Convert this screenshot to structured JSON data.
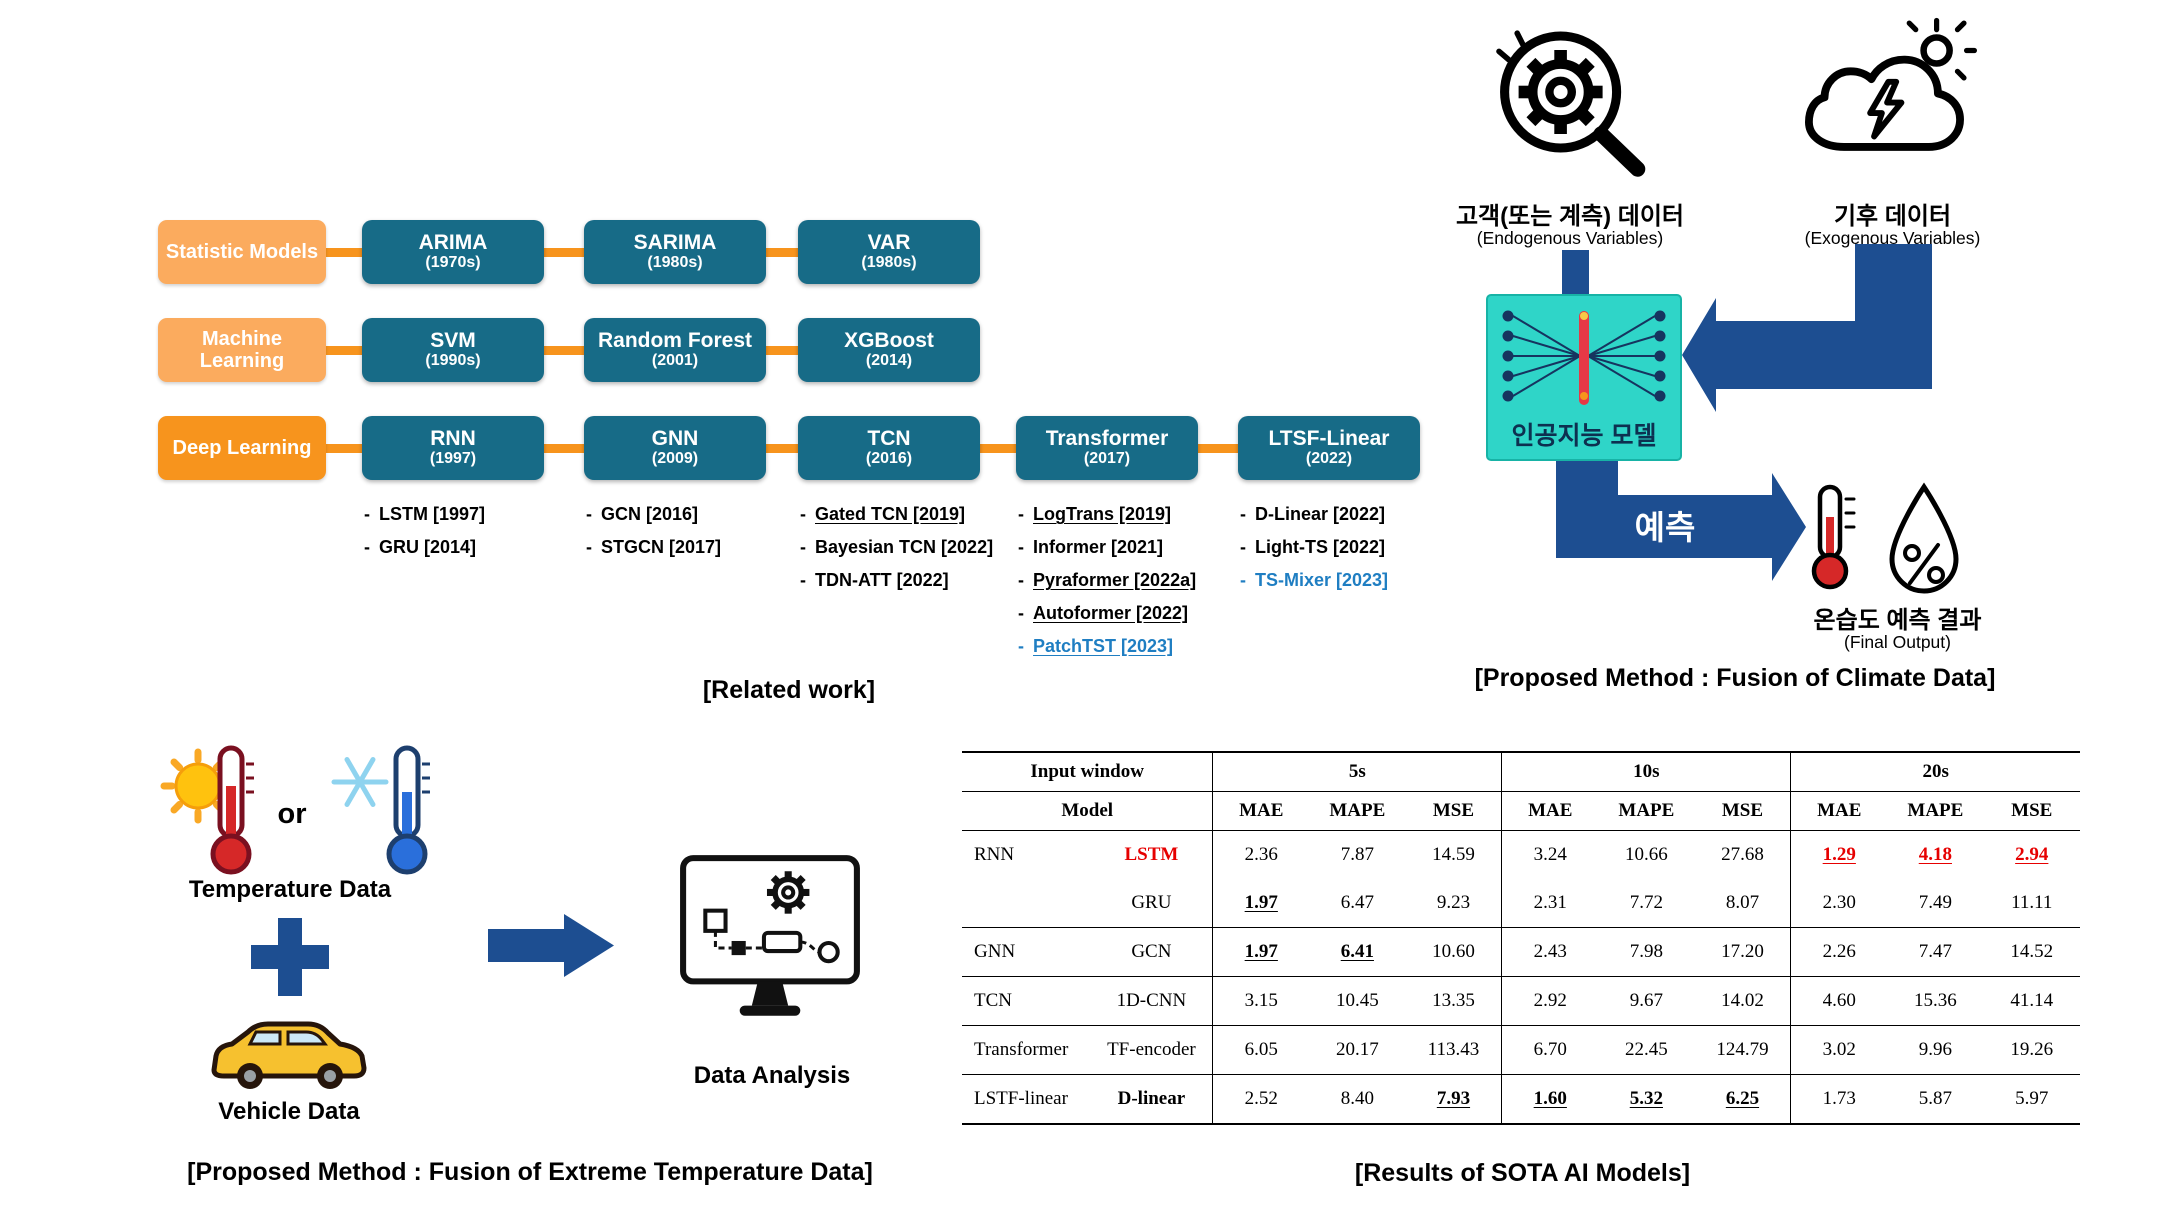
{
  "colors": {
    "navy": "#1d4e91",
    "orange": "#f7941d",
    "orange_light": "#fbab5e",
    "box_teal": "#176b87",
    "cyan": "#2fd5c8",
    "red": "#e60000",
    "link_blue": "#1f7ec2"
  },
  "related_work": {
    "caption": "[Related work]",
    "rows": [
      {
        "label": "Statistic Models",
        "boxes": [
          {
            "name": "ARIMA",
            "year": "(1970s)"
          },
          {
            "name": "SARIMA",
            "year": "(1980s)"
          },
          {
            "name": "VAR",
            "year": "(1980s)"
          }
        ]
      },
      {
        "label": "Machine Learning",
        "boxes": [
          {
            "name": "SVM",
            "year": "(1990s)"
          },
          {
            "name": "Random Forest",
            "year": "(2001)"
          },
          {
            "name": "XGBoost",
            "year": "(2014)"
          }
        ]
      },
      {
        "label": "Deep Learning",
        "boxes": [
          {
            "name": "RNN",
            "year": "(1997)"
          },
          {
            "name": "GNN",
            "year": "(2009)"
          },
          {
            "name": "TCN",
            "year": "(2016)"
          },
          {
            "name": "Transformer",
            "year": "(2017)"
          },
          {
            "name": "LTSF-Linear",
            "year": "(2022)"
          }
        ]
      }
    ],
    "sublists": [
      {
        "items": [
          {
            "text": "LSTM [1997]"
          },
          {
            "text": "GRU [2014]"
          }
        ]
      },
      {
        "items": [
          {
            "text": "GCN [2016]"
          },
          {
            "text": "STGCN [2017]"
          }
        ]
      },
      {
        "items": [
          {
            "text": "Gated TCN [2019]",
            "underline": true
          },
          {
            "text": "Bayesian TCN [2022]"
          },
          {
            "text": "TDN-ATT [2022]"
          }
        ]
      },
      {
        "items": [
          {
            "text": "LogTrans [2019]",
            "underline": true
          },
          {
            "text": "Informer [2021]"
          },
          {
            "text": "Pyraformer [2022a]",
            "underline": true
          },
          {
            "text": "Autoformer [2022]",
            "underline": true
          },
          {
            "text": "PatchTST [2023]",
            "underline": true,
            "blue": true
          }
        ]
      },
      {
        "items": [
          {
            "text": "D-Linear [2022]"
          },
          {
            "text": "Light-TS [2022]"
          },
          {
            "text": "TS-Mixer [2023]",
            "blue": true
          }
        ]
      }
    ]
  },
  "climate": {
    "caption": "[Proposed Method : Fusion of Climate Data]",
    "endogenous_title": "고객(또는 계측) 데이터",
    "endogenous_subtitle": "(Endogenous Variables)",
    "exogenous_title": "기후 데이터",
    "exogenous_subtitle": "(Exogenous Variables)",
    "model_label": "인공지능 모델",
    "predict_label": "예측",
    "output_title": "온습도 예측 결과",
    "output_subtitle": "(Final Output)"
  },
  "temperature": {
    "caption": "[Proposed Method : Fusion of Extreme Temperature Data]",
    "or_label": "or",
    "temperature_label": "Temperature Data",
    "vehicle_label": "Vehicle Data",
    "analysis_label": "Data Analysis"
  },
  "results": {
    "caption": "[Results of SOTA AI Models]",
    "header": {
      "input_window": "Input window",
      "model": "Model",
      "windows": [
        "5s",
        "10s",
        "20s"
      ],
      "metrics": [
        "MAE",
        "MAPE",
        "MSE"
      ]
    },
    "rows": [
      {
        "group": "RNN",
        "model": "LSTM",
        "model_style": "red",
        "values": [
          "2.36",
          "7.87",
          "14.59",
          "3.24",
          "10.66",
          "27.68",
          "1.29",
          "4.18",
          "2.94"
        ],
        "styles": [
          "",
          "",
          "",
          "",
          "",
          "",
          "red-ul",
          "red-ul",
          "red-ul"
        ]
      },
      {
        "group": "",
        "model": "GRU",
        "separator": true,
        "values": [
          "1.97",
          "6.47",
          "9.23",
          "2.31",
          "7.72",
          "8.07",
          "2.30",
          "7.49",
          "11.11"
        ],
        "styles": [
          "ul",
          "",
          "",
          "",
          "",
          "",
          "",
          "",
          ""
        ]
      },
      {
        "group": "GNN",
        "model": "GCN",
        "separator": true,
        "values": [
          "1.97",
          "6.41",
          "10.60",
          "2.43",
          "7.98",
          "17.20",
          "2.26",
          "7.47",
          "14.52"
        ],
        "styles": [
          "ul",
          "ul",
          "",
          "",
          "",
          "",
          "",
          "",
          ""
        ]
      },
      {
        "group": "TCN",
        "model": "1D-CNN",
        "separator": true,
        "values": [
          "3.15",
          "10.45",
          "13.35",
          "2.92",
          "9.67",
          "14.02",
          "4.60",
          "15.36",
          "41.14"
        ],
        "styles": [
          "",
          "",
          "",
          "",
          "",
          "",
          "",
          "",
          ""
        ]
      },
      {
        "group": "Transformer",
        "model": "TF-encoder",
        "separator": true,
        "values": [
          "6.05",
          "20.17",
          "113.43",
          "6.70",
          "22.45",
          "124.79",
          "3.02",
          "9.96",
          "19.26"
        ],
        "styles": [
          "",
          "",
          "",
          "",
          "",
          "",
          "",
          "",
          ""
        ]
      },
      {
        "group": "LSTF-linear",
        "model": "D-linear",
        "model_style": "bold",
        "values": [
          "2.52",
          "8.40",
          "7.93",
          "1.60",
          "5.32",
          "6.25",
          "1.73",
          "5.87",
          "5.97"
        ],
        "styles": [
          "",
          "",
          "ul",
          "ul",
          "ul",
          "ul",
          "",
          "",
          ""
        ]
      }
    ]
  }
}
